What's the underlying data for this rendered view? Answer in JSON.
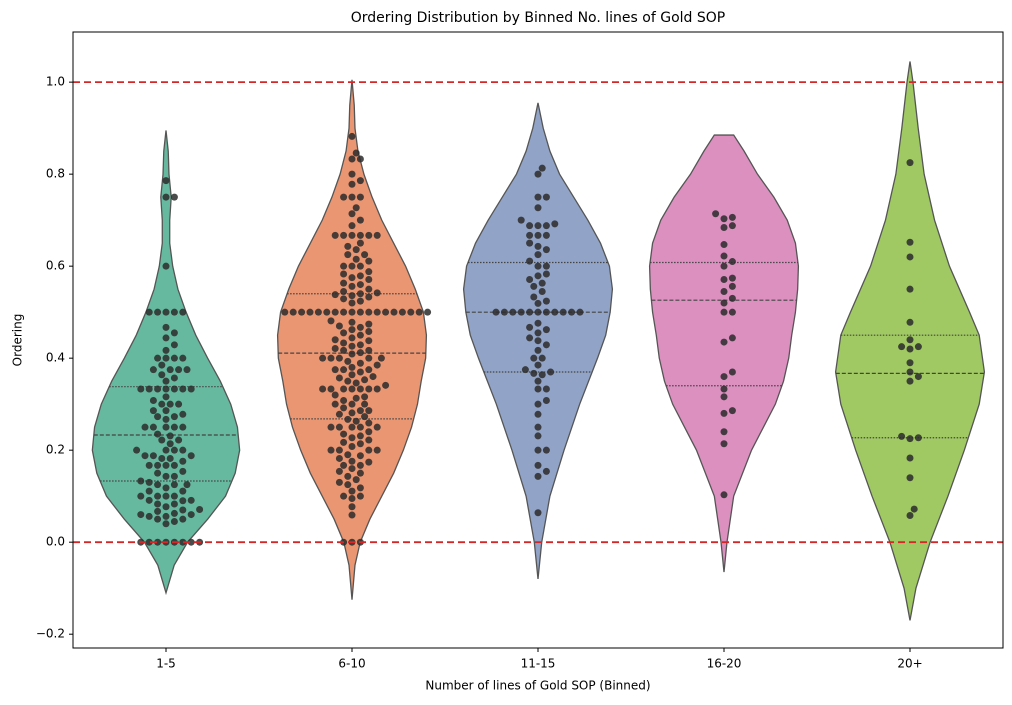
{
  "chart_data": {
    "type": "violin",
    "title": "Ordering Distribution by Binned No. lines of Gold SOP",
    "x_label": "Number of lines of Gold SOP (Binned)",
    "y_label": "Ordering",
    "categories": [
      "1-5",
      "6-10",
      "11-15",
      "16-20",
      "20+"
    ],
    "ylim": [
      -0.23,
      1.109
    ],
    "yticks": [
      {
        "value": -0.2,
        "label": "−0.2"
      },
      {
        "value": 0,
        "label": "0.0"
      },
      {
        "value": 0.2,
        "label": "0.2"
      },
      {
        "value": 0.4,
        "label": "0.4"
      },
      {
        "value": 0.6,
        "label": "0.6"
      },
      {
        "value": 0.8,
        "label": "0.8"
      },
      {
        "value": 1,
        "label": "1.0"
      }
    ],
    "reference_lines": [
      0,
      1
    ],
    "reference_color": "#d62728",
    "point_color": "#2b2b2b",
    "groups": [
      {
        "color": "#66b99f",
        "quartiles": [
          0.133,
          0.233,
          0.338
        ],
        "violin_y": [
          -0.11,
          -0.05,
          0,
          0.05,
          0.1,
          0.15,
          0.2,
          0.25,
          0.3,
          0.35,
          0.4,
          0.45,
          0.5,
          0.55,
          0.6,
          0.65,
          0.7,
          0.75,
          0.8,
          0.85,
          0.895
        ],
        "violin_width": [
          0,
          0.11,
          0.29,
          0.56,
          0.8,
          0.93,
          0.99,
          0.96,
          0.87,
          0.73,
          0.56,
          0.4,
          0.27,
          0.16,
          0.09,
          0.05,
          0.05,
          0.07,
          0.04,
          0.03,
          0
        ],
        "points": [
          0,
          0,
          0,
          0,
          0,
          0,
          0,
          0,
          0.04,
          0.045,
          0.05,
          0.05,
          0.056,
          0.056,
          0.06,
          0.06,
          0.0625,
          0.067,
          0.07,
          0.071,
          0.077,
          0.083,
          0.083,
          0.09,
          0.091,
          0.091,
          0.1,
          0.1,
          0.1,
          0.1,
          0.111,
          0.111,
          0.118,
          0.125,
          0.125,
          0.125,
          0.13,
          0.133,
          0.143,
          0.143,
          0.15,
          0.154,
          0.167,
          0.167,
          0.167,
          0.167,
          0.176,
          0.182,
          0.182,
          0.188,
          0.188,
          0.188,
          0.2,
          0.2,
          0.2,
          0.2,
          0.214,
          0.222,
          0.222,
          0.231,
          0.235,
          0.25,
          0.25,
          0.25,
          0.25,
          0.25,
          0.267,
          0.273,
          0.273,
          0.278,
          0.286,
          0.286,
          0.3,
          0.3,
          0.3,
          0.308,
          0.316,
          0.333,
          0.333,
          0.333,
          0.333,
          0.333,
          0.333,
          0.333,
          0.35,
          0.357,
          0.364,
          0.375,
          0.375,
          0.375,
          0.375,
          0.385,
          0.4,
          0.4,
          0.4,
          0.4,
          0.417,
          0.429,
          0.444,
          0.455,
          0.467,
          0.5,
          0.5,
          0.5,
          0.5,
          0.5,
          0.6,
          0.75,
          0.75,
          0.786
        ]
      },
      {
        "color": "#ea9672",
        "quartiles": [
          0.268,
          0.411,
          0.54
        ],
        "violin_y": [
          -0.125,
          -0.05,
          0,
          0.05,
          0.1,
          0.15,
          0.2,
          0.25,
          0.3,
          0.35,
          0.4,
          0.45,
          0.5,
          0.55,
          0.6,
          0.65,
          0.7,
          0.75,
          0.8,
          0.85,
          0.9,
          0.95,
          1.005
        ],
        "violin_width": [
          0,
          0.04,
          0.11,
          0.24,
          0.4,
          0.56,
          0.69,
          0.8,
          0.88,
          0.93,
          0.99,
          1,
          0.96,
          0.85,
          0.72,
          0.56,
          0.4,
          0.27,
          0.16,
          0.08,
          0.04,
          0.03,
          0
        ],
        "points": [
          0,
          0,
          0,
          0.059,
          0.077,
          0.095,
          0.1,
          0.1,
          0.111,
          0.118,
          0.125,
          0.13,
          0.136,
          0.143,
          0.15,
          0.154,
          0.16,
          0.167,
          0.167,
          0.174,
          0.176,
          0.182,
          0.188,
          0.19,
          0.2,
          0.2,
          0.2,
          0.2,
          0.208,
          0.214,
          0.217,
          0.222,
          0.227,
          0.231,
          0.235,
          0.24,
          0.25,
          0.25,
          0.25,
          0.25,
          0.25,
          0.259,
          0.263,
          0.267,
          0.273,
          0.278,
          0.281,
          0.286,
          0.286,
          0.292,
          0.3,
          0.3,
          0.3,
          0.308,
          0.313,
          0.316,
          0.32,
          0.333,
          0.333,
          0.333,
          0.333,
          0.333,
          0.333,
          0.333,
          0.341,
          0.346,
          0.35,
          0.353,
          0.357,
          0.36,
          0.364,
          0.37,
          0.375,
          0.375,
          0.375,
          0.38,
          0.385,
          0.389,
          0.393,
          0.4,
          0.4,
          0.4,
          0.4,
          0.4,
          0.409,
          0.412,
          0.417,
          0.417,
          0.421,
          0.426,
          0.429,
          0.433,
          0.438,
          0.44,
          0.444,
          0.45,
          0.455,
          0.458,
          0.462,
          0.467,
          0.47,
          0.474,
          0.478,
          0.481,
          0.5,
          0.5,
          0.5,
          0.5,
          0.5,
          0.5,
          0.5,
          0.5,
          0.5,
          0.5,
          0.5,
          0.5,
          0.5,
          0.5,
          0.5,
          0.5,
          0.5,
          0.5,
          0.52,
          0.524,
          0.529,
          0.533,
          0.536,
          0.538,
          0.54,
          0.542,
          0.545,
          0.55,
          0.556,
          0.56,
          0.563,
          0.571,
          0.575,
          0.579,
          0.583,
          0.588,
          0.6,
          0.6,
          0.6,
          0.611,
          0.615,
          0.625,
          0.625,
          0.636,
          0.643,
          0.65,
          0.667,
          0.667,
          0.667,
          0.667,
          0.667,
          0.667,
          0.688,
          0.7,
          0.714,
          0.727,
          0.75,
          0.75,
          0.75,
          0.778,
          0.786,
          0.8,
          0.833,
          0.833,
          0.846,
          0.882
        ]
      },
      {
        "color": "#91a3c6",
        "quartiles": [
          0.37,
          0.5,
          0.608
        ],
        "violin_y": [
          -0.08,
          0,
          0.1,
          0.2,
          0.3,
          0.4,
          0.45,
          0.5,
          0.55,
          0.6,
          0.65,
          0.7,
          0.75,
          0.8,
          0.85,
          0.9,
          0.955
        ],
        "violin_width": [
          0,
          0.05,
          0.16,
          0.35,
          0.56,
          0.8,
          0.91,
          0.97,
          1,
          0.96,
          0.84,
          0.67,
          0.48,
          0.29,
          0.16,
          0.07,
          0
        ],
        "points": [
          0.064,
          0.143,
          0.154,
          0.167,
          0.2,
          0.2,
          0.231,
          0.25,
          0.278,
          0.3,
          0.308,
          0.333,
          0.333,
          0.35,
          0.364,
          0.367,
          0.37,
          0.375,
          0.385,
          0.4,
          0.4,
          0.417,
          0.429,
          0.438,
          0.444,
          0.455,
          0.462,
          0.467,
          0.476,
          0.5,
          0.5,
          0.5,
          0.5,
          0.5,
          0.5,
          0.5,
          0.5,
          0.5,
          0.5,
          0.5,
          0.519,
          0.524,
          0.533,
          0.545,
          0.556,
          0.563,
          0.571,
          0.579,
          0.583,
          0.6,
          0.6,
          0.611,
          0.625,
          0.636,
          0.643,
          0.65,
          0.667,
          0.667,
          0.667,
          0.688,
          0.688,
          0.688,
          0.692,
          0.7,
          0.727,
          0.75,
          0.75,
          0.8,
          0.813
        ]
      },
      {
        "color": "#dc90c0",
        "quartiles": [
          0.34,
          0.526,
          0.608
        ],
        "violin_y": [
          -0.065,
          0,
          0.1,
          0.2,
          0.25,
          0.3,
          0.35,
          0.4,
          0.45,
          0.5,
          0.55,
          0.6,
          0.65,
          0.7,
          0.75,
          0.8,
          0.85,
          0.885
        ],
        "violin_width": [
          0,
          0.04,
          0.13,
          0.37,
          0.53,
          0.69,
          0.8,
          0.87,
          0.91,
          0.96,
          0.99,
          1,
          0.96,
          0.85,
          0.67,
          0.45,
          0.27,
          0.13
        ],
        "points": [
          0.714,
          0.706,
          0.703,
          0.688,
          0.684,
          0.647,
          0.622,
          0.61,
          0.6,
          0.574,
          0.571,
          0.556,
          0.545,
          0.53,
          0.52,
          0.5,
          0.5,
          0.444,
          0.435,
          0.37,
          0.36,
          0.333,
          0.316,
          0.286,
          0.28,
          0.24,
          0.214,
          0.103
        ]
      },
      {
        "color": "#a0c963",
        "quartiles": [
          0.227,
          0.367,
          0.45
        ],
        "violin_y": [
          -0.17,
          -0.1,
          0,
          0.1,
          0.2,
          0.3,
          0.37,
          0.45,
          0.5,
          0.6,
          0.7,
          0.8,
          0.9,
          1,
          1.045
        ],
        "violin_width": [
          0,
          0.08,
          0.27,
          0.51,
          0.73,
          0.93,
          1,
          0.93,
          0.8,
          0.53,
          0.33,
          0.19,
          0.11,
          0.04,
          0
        ],
        "points": [
          0.825,
          0.652,
          0.62,
          0.55,
          0.478,
          0.44,
          0.425,
          0.42,
          0.425,
          0.39,
          0.37,
          0.36,
          0.35,
          0.23,
          0.227,
          0.225,
          0.183,
          0.14,
          0.072,
          0.058
        ]
      }
    ]
  }
}
